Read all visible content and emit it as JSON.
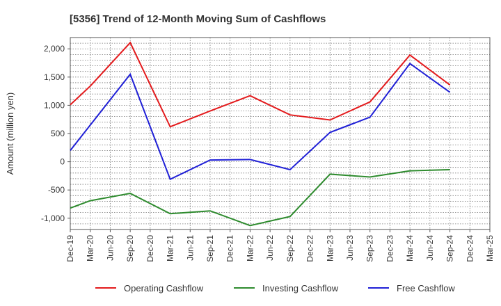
{
  "chart_data": {
    "type": "line",
    "title": "[5356]  Trend of 12-Month Moving Sum of Cashflows",
    "xlabel": "",
    "ylabel": "Amount (million yen)",
    "categories": [
      "Dec-19",
      "Mar-20",
      "Jun-20",
      "Sep-20",
      "Dec-20",
      "Mar-21",
      "Jun-21",
      "Sep-21",
      "Dec-21",
      "Mar-22",
      "Jun-22",
      "Sep-22",
      "Dec-22",
      "Mar-23",
      "Jun-23",
      "Sep-23",
      "Dec-23",
      "Mar-24",
      "Jun-24",
      "Sep-24",
      "Dec-24",
      "Mar-25"
    ],
    "ylim": [
      -1200,
      2200
    ],
    "yticks": [
      -1000,
      -500,
      0,
      500,
      1000,
      1500,
      2000
    ],
    "ytick_labels": [
      "-1,000",
      "-500",
      "0",
      "500",
      "1,000",
      "1,500",
      "2,000"
    ],
    "grid": true,
    "legend_position": "bottom",
    "series": [
      {
        "name": "Operating Cashflow",
        "color": "#e31a1c",
        "points": [
          [
            "Dec-19",
            1010
          ],
          [
            "Mar-20",
            1340
          ],
          [
            "Sep-20",
            2110
          ],
          [
            "Mar-21",
            620
          ],
          [
            "Sep-21",
            900
          ],
          [
            "Mar-22",
            1170
          ],
          [
            "Sep-22",
            830
          ],
          [
            "Mar-23",
            740
          ],
          [
            "Sep-23",
            1060
          ],
          [
            "Mar-24",
            1890
          ],
          [
            "Sep-24",
            1360
          ]
        ]
      },
      {
        "name": "Investing Cashflow",
        "color": "#2e8b2e",
        "points": [
          [
            "Dec-19",
            -820
          ],
          [
            "Mar-20",
            -690
          ],
          [
            "Sep-20",
            -560
          ],
          [
            "Mar-21",
            -920
          ],
          [
            "Sep-21",
            -870
          ],
          [
            "Mar-22",
            -1130
          ],
          [
            "Sep-22",
            -970
          ],
          [
            "Mar-23",
            -220
          ],
          [
            "Sep-23",
            -270
          ],
          [
            "Mar-24",
            -160
          ],
          [
            "Sep-24",
            -140
          ]
        ]
      },
      {
        "name": "Free Cashflow",
        "color": "#1f1fd6",
        "points": [
          [
            "Dec-19",
            200
          ],
          [
            "Mar-20",
            650
          ],
          [
            "Sep-20",
            1550
          ],
          [
            "Mar-21",
            -310
          ],
          [
            "Sep-21",
            30
          ],
          [
            "Mar-22",
            40
          ],
          [
            "Sep-22",
            -140
          ],
          [
            "Mar-23",
            520
          ],
          [
            "Sep-23",
            790
          ],
          [
            "Mar-24",
            1740
          ],
          [
            "Sep-24",
            1230
          ]
        ]
      }
    ]
  }
}
